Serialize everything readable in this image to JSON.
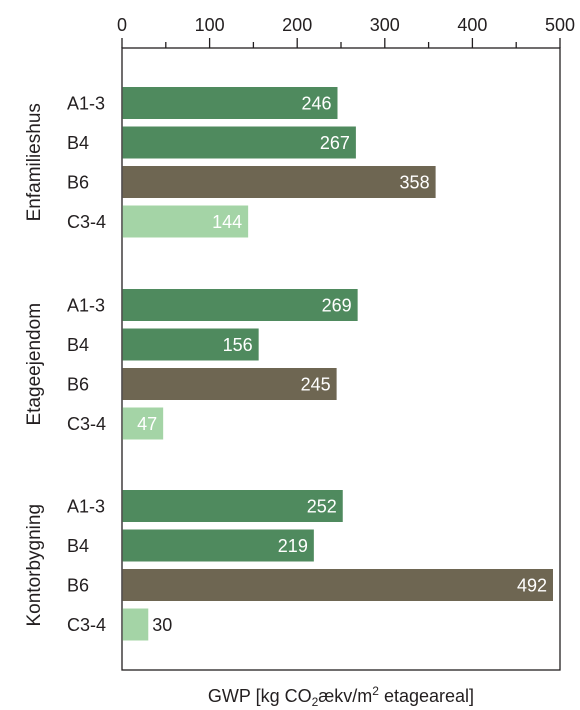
{
  "chart_data": {
    "type": "bar",
    "orientation": "horizontal",
    "title": "",
    "xlabel": {
      "prefix": "GWP [kg CO",
      "sub": "2",
      "middle": "ækv/m",
      "sup": "2",
      "suffix": " etageareal]"
    },
    "xlim": [
      0,
      500
    ],
    "xticks": [
      0,
      100,
      200,
      300,
      400,
      500
    ],
    "tick_labels": [
      "0",
      "100",
      "200",
      "300",
      "400",
      "500"
    ],
    "axis_position": "top",
    "grid": false,
    "colors": {
      "A1-3": "#4f8a5e",
      "B4": "#4f8a5e",
      "B6": "#6e6652",
      "C3-4": "#a4d4a6"
    },
    "groups": [
      {
        "name": "Enfamilieshus",
        "bars": [
          {
            "category": "A1-3",
            "value": 246,
            "label": "246"
          },
          {
            "category": "B4",
            "value": 267,
            "label": "267"
          },
          {
            "category": "B6",
            "value": 358,
            "label": "358"
          },
          {
            "category": "C3-4",
            "value": 144,
            "label": "144"
          }
        ]
      },
      {
        "name": "Etageejendom",
        "bars": [
          {
            "category": "A1-3",
            "value": 269,
            "label": "269"
          },
          {
            "category": "B4",
            "value": 156,
            "label": "156"
          },
          {
            "category": "B6",
            "value": 245,
            "label": "245"
          },
          {
            "category": "C3-4",
            "value": 47,
            "label": "47"
          }
        ]
      },
      {
        "name": "Kontorbygning",
        "bars": [
          {
            "category": "A1-3",
            "value": 252,
            "label": "252"
          },
          {
            "category": "B4",
            "value": 219,
            "label": "219"
          },
          {
            "category": "B6",
            "value": 492,
            "label": "492"
          },
          {
            "category": "C3-4",
            "value": 30,
            "label": "30"
          }
        ]
      }
    ]
  }
}
